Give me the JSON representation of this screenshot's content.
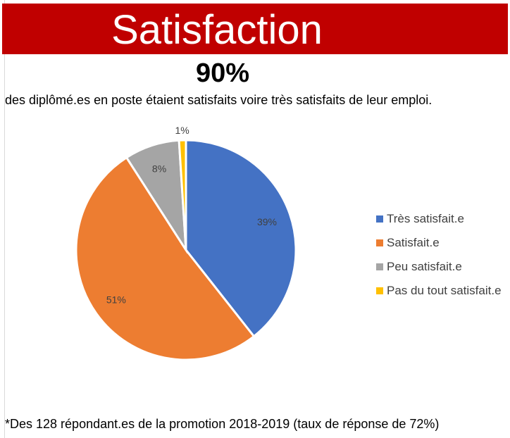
{
  "banner": {
    "title": "Satisfaction"
  },
  "headline": "90%",
  "subtitle": "des diplômé.es en poste étaient satisfaits voire très satisfaits de leur emploi.",
  "footnote": "*Des 128 répondant.es de la promotion 2018-2019 (taux de réponse de 72%)",
  "colors": {
    "banner": "#c00000",
    "text": "#000000",
    "label": "#404040"
  },
  "chart_data": {
    "type": "pie",
    "title": "",
    "legend_position": "right",
    "slices": [
      {
        "label": "Très satisfait.e",
        "value": 39,
        "display": "39%",
        "color": "#4472c4"
      },
      {
        "label": "Satisfait.e",
        "value": 51,
        "display": "51%",
        "color": "#ed7d31"
      },
      {
        "label": "Peu satisfait.e",
        "value": 8,
        "display": "8%",
        "color": "#a5a5a5"
      },
      {
        "label": "Pas du tout satisfait.e",
        "value": 1,
        "display": "1%",
        "color": "#ffc000"
      }
    ]
  }
}
